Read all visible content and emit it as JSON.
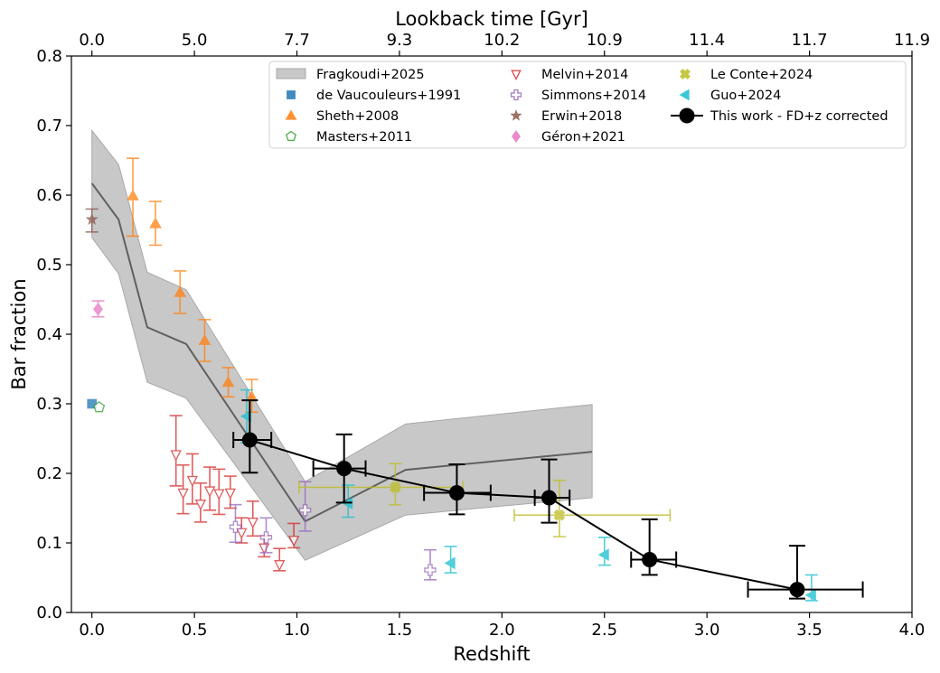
{
  "chart_data": {
    "type": "scatter",
    "title": "",
    "xlabel": "Redshift",
    "ylabel": "Bar fraction",
    "top_xlabel": "Lookback time [Gyr]",
    "xlim": [
      -0.1,
      4.0
    ],
    "ylim": [
      0.0,
      0.8
    ],
    "grid": false,
    "legend_position": "top-right",
    "x_ticks": [
      0.0,
      0.5,
      1.0,
      1.5,
      2.0,
      2.5,
      3.0,
      3.5,
      4.0
    ],
    "x_tick_labels": [
      "0.0",
      "0.5",
      "1.0",
      "1.5",
      "2.0",
      "2.5",
      "3.0",
      "3.5",
      "4.0"
    ],
    "y_ticks": [
      0.0,
      0.1,
      0.2,
      0.3,
      0.4,
      0.5,
      0.6,
      0.7,
      0.8
    ],
    "y_tick_labels": [
      "0.0",
      "0.1",
      "0.2",
      "0.3",
      "0.4",
      "0.5",
      "0.6",
      "0.7",
      "0.8"
    ],
    "top_x_ticks": [
      0.0,
      0.5,
      1.0,
      1.5,
      2.0,
      2.5,
      3.0,
      3.5,
      4.0
    ],
    "top_x_tick_labels": [
      "0.0",
      "5.0",
      "7.7",
      "9.3",
      "10.2",
      "10.9",
      "11.4",
      "11.7",
      "11.9"
    ],
    "band": {
      "name": "Fragkoudi+2025",
      "color": "#c8c8c8",
      "line_color": "#606060",
      "x": [
        0.0,
        0.13,
        0.27,
        0.46,
        1.04,
        1.53,
        2.44
      ],
      "upper": [
        0.693,
        0.644,
        0.489,
        0.464,
        0.188,
        0.271,
        0.299
      ],
      "median": [
        0.617,
        0.565,
        0.41,
        0.386,
        0.131,
        0.205,
        0.231
      ],
      "lower": [
        0.539,
        0.487,
        0.331,
        0.308,
        0.075,
        0.14,
        0.165
      ]
    },
    "series": [
      {
        "name": "de Vaucouleurs+1991",
        "marker": "square",
        "color": "#1f77b4",
        "filled": true,
        "points": [
          {
            "x": 0.0,
            "y": 0.3
          }
        ]
      },
      {
        "name": "Sheth+2008",
        "marker": "triangle-up",
        "color": "#ff7f0e",
        "filled": true,
        "points": [
          {
            "x": 0.2,
            "y": 0.599,
            "ylo": 0.541,
            "yhi": 0.653
          },
          {
            "x": 0.31,
            "y": 0.559,
            "ylo": 0.528,
            "yhi": 0.591
          },
          {
            "x": 0.43,
            "y": 0.46,
            "ylo": 0.43,
            "yhi": 0.491
          },
          {
            "x": 0.55,
            "y": 0.391,
            "ylo": 0.361,
            "yhi": 0.421
          },
          {
            "x": 0.665,
            "y": 0.331,
            "ylo": 0.31,
            "yhi": 0.352
          },
          {
            "x": 0.78,
            "y": 0.31,
            "ylo": 0.288,
            "yhi": 0.335
          }
        ]
      },
      {
        "name": "Masters+2011",
        "marker": "pentagon",
        "color": "#2ca02c",
        "filled": false,
        "points": [
          {
            "x": 0.035,
            "y": 0.295
          }
        ]
      },
      {
        "name": "Melvin+2014",
        "marker": "triangle-down",
        "color": "#d62728",
        "filled": false,
        "points": [
          {
            "x": 0.41,
            "y": 0.227,
            "ylo": 0.182,
            "yhi": 0.283
          },
          {
            "x": 0.445,
            "y": 0.172,
            "ylo": 0.142,
            "yhi": 0.212
          },
          {
            "x": 0.49,
            "y": 0.19,
            "ylo": 0.156,
            "yhi": 0.228
          },
          {
            "x": 0.53,
            "y": 0.156,
            "ylo": 0.13,
            "yhi": 0.186
          },
          {
            "x": 0.575,
            "y": 0.175,
            "ylo": 0.147,
            "yhi": 0.209
          },
          {
            "x": 0.62,
            "y": 0.171,
            "ylo": 0.141,
            "yhi": 0.206
          },
          {
            "x": 0.675,
            "y": 0.172,
            "ylo": 0.15,
            "yhi": 0.196
          },
          {
            "x": 0.73,
            "y": 0.115,
            "ylo": 0.1,
            "yhi": 0.136
          },
          {
            "x": 0.785,
            "y": 0.13,
            "ylo": 0.11,
            "yhi": 0.16
          },
          {
            "x": 0.84,
            "y": 0.093,
            "ylo": 0.08,
            "yhi": 0.11
          },
          {
            "x": 0.915,
            "y": 0.069,
            "ylo": 0.06,
            "yhi": 0.092
          },
          {
            "x": 0.985,
            "y": 0.104,
            "ylo": 0.093,
            "yhi": 0.128
          }
        ]
      },
      {
        "name": "Simmons+2014",
        "marker": "plus",
        "color": "#9467bd",
        "filled": false,
        "points": [
          {
            "x": 0.7,
            "y": 0.123,
            "ylo": 0.101,
            "yhi": 0.155
          },
          {
            "x": 0.85,
            "y": 0.108,
            "ylo": 0.086,
            "yhi": 0.136
          },
          {
            "x": 1.04,
            "y": 0.147,
            "ylo": 0.117,
            "yhi": 0.188
          },
          {
            "x": 1.65,
            "y": 0.061,
            "ylo": 0.047,
            "yhi": 0.09
          }
        ]
      },
      {
        "name": "Erwin+2018",
        "marker": "star",
        "color": "#8c564b",
        "filled": true,
        "points": [
          {
            "x": 0.0,
            "y": 0.565,
            "ylo": 0.547,
            "yhi": 0.58
          }
        ]
      },
      {
        "name": "Géron+2021",
        "marker": "diamond",
        "color": "#e377c2",
        "filled": true,
        "points": [
          {
            "x": 0.03,
            "y": 0.436,
            "ylo": 0.425,
            "yhi": 0.448
          }
        ]
      },
      {
        "name": "Le Conte+2024",
        "marker": "x-filled",
        "color": "#bcbd22",
        "filled": true,
        "points": [
          {
            "x": 1.48,
            "y": 0.18,
            "ylo": 0.155,
            "yhi": 0.214,
            "xlo": 1.01,
            "xhi": 1.81
          },
          {
            "x": 2.28,
            "y": 0.14,
            "ylo": 0.109,
            "yhi": 0.19,
            "xlo": 2.06,
            "xhi": 2.82
          }
        ]
      },
      {
        "name": "Guo+2024",
        "marker": "triangle-left",
        "color": "#17becf",
        "filled": true,
        "points": [
          {
            "x": 0.755,
            "y": 0.282,
            "ylo": 0.244,
            "yhi": 0.32
          },
          {
            "x": 1.25,
            "y": 0.157,
            "ylo": 0.137,
            "yhi": 0.183
          },
          {
            "x": 1.75,
            "y": 0.071,
            "ylo": 0.057,
            "yhi": 0.095
          },
          {
            "x": 2.5,
            "y": 0.083,
            "ylo": 0.068,
            "yhi": 0.108
          },
          {
            "x": 3.51,
            "y": 0.025,
            "ylo": 0.017,
            "yhi": 0.054
          }
        ]
      },
      {
        "name": "This work - FD+z corrected",
        "marker": "circle",
        "color": "#000000",
        "filled": true,
        "line": true,
        "points": [
          {
            "x": 0.77,
            "y": 0.248,
            "ylo": 0.201,
            "yhi": 0.305,
            "xlo": 0.69,
            "xhi": 0.875
          },
          {
            "x": 1.23,
            "y": 0.207,
            "ylo": 0.158,
            "yhi": 0.256,
            "xlo": 1.08,
            "xhi": 1.335
          },
          {
            "x": 1.78,
            "y": 0.172,
            "ylo": 0.141,
            "yhi": 0.213,
            "xlo": 1.62,
            "xhi": 1.945
          },
          {
            "x": 2.23,
            "y": 0.165,
            "ylo": 0.129,
            "yhi": 0.22,
            "xlo": 2.16,
            "xhi": 2.33
          },
          {
            "x": 2.72,
            "y": 0.076,
            "ylo": 0.054,
            "yhi": 0.134,
            "xlo": 2.63,
            "xhi": 2.85
          },
          {
            "x": 3.44,
            "y": 0.033,
            "ylo": 0.02,
            "yhi": 0.096,
            "xlo": 3.2,
            "xhi": 3.76
          }
        ]
      }
    ],
    "legend": [
      [
        "Fragkoudi+2025",
        "de Vaucouleurs+1991",
        "Sheth+2008",
        "Masters+2011"
      ],
      [
        "Melvin+2014",
        "Simmons+2014",
        "Erwin+2018",
        "Géron+2021"
      ],
      [
        "Le Conte+2024",
        "Guo+2024",
        "This work - FD+z corrected"
      ]
    ]
  }
}
